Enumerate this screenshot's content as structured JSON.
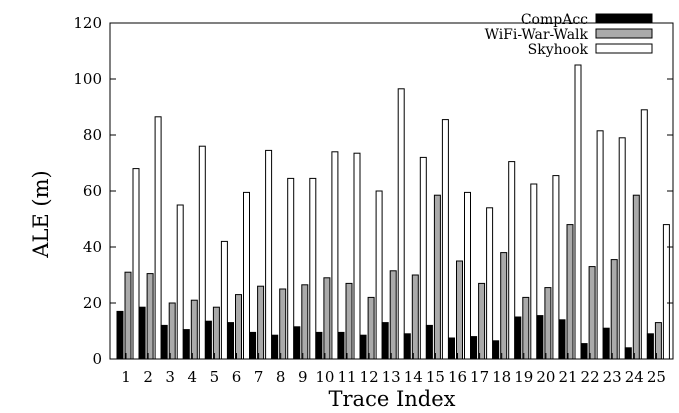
{
  "chart_data": {
    "type": "bar",
    "xlabel": "Trace Index",
    "ylabel": "ALE (m)",
    "ylim": [
      0,
      120
    ],
    "yticks": [
      0,
      20,
      40,
      60,
      80,
      100,
      120
    ],
    "grid": false,
    "legend_position": "top-right",
    "categories": [
      "1",
      "2",
      "3",
      "4",
      "5",
      "6",
      "7",
      "8",
      "9",
      "10",
      "11",
      "12",
      "13",
      "14",
      "15",
      "16",
      "17",
      "18",
      "19",
      "20",
      "21",
      "22",
      "23",
      "24",
      "25"
    ],
    "series": [
      {
        "name": "CompAcc",
        "color": "#000000",
        "values": [
          17,
          18.5,
          12,
          10.5,
          13.5,
          13,
          9.5,
          8.5,
          11.5,
          9.5,
          9.5,
          8.5,
          13,
          9,
          12,
          7.5,
          8,
          6.5,
          15,
          15.5,
          14,
          5.5,
          11,
          4,
          9
        ]
      },
      {
        "name": "WiFi-War-Walk",
        "color": "#aaaaaa",
        "values": [
          31,
          30.5,
          20,
          21,
          18.5,
          23,
          26,
          25,
          26.5,
          29,
          27,
          22,
          31.5,
          30,
          58.5,
          35,
          27,
          38,
          22,
          25.5,
          48,
          33,
          35.5,
          58.5,
          13
        ]
      },
      {
        "name": "Skyhook",
        "color": "#ffffff",
        "values": [
          68,
          86.5,
          55,
          76,
          42,
          59.5,
          74.5,
          64.5,
          64.5,
          74,
          73.5,
          60,
          96.5,
          72,
          85.5,
          59.5,
          54,
          70.5,
          62.5,
          65.5,
          105,
          81.5,
          79,
          89,
          48
        ]
      }
    ]
  }
}
